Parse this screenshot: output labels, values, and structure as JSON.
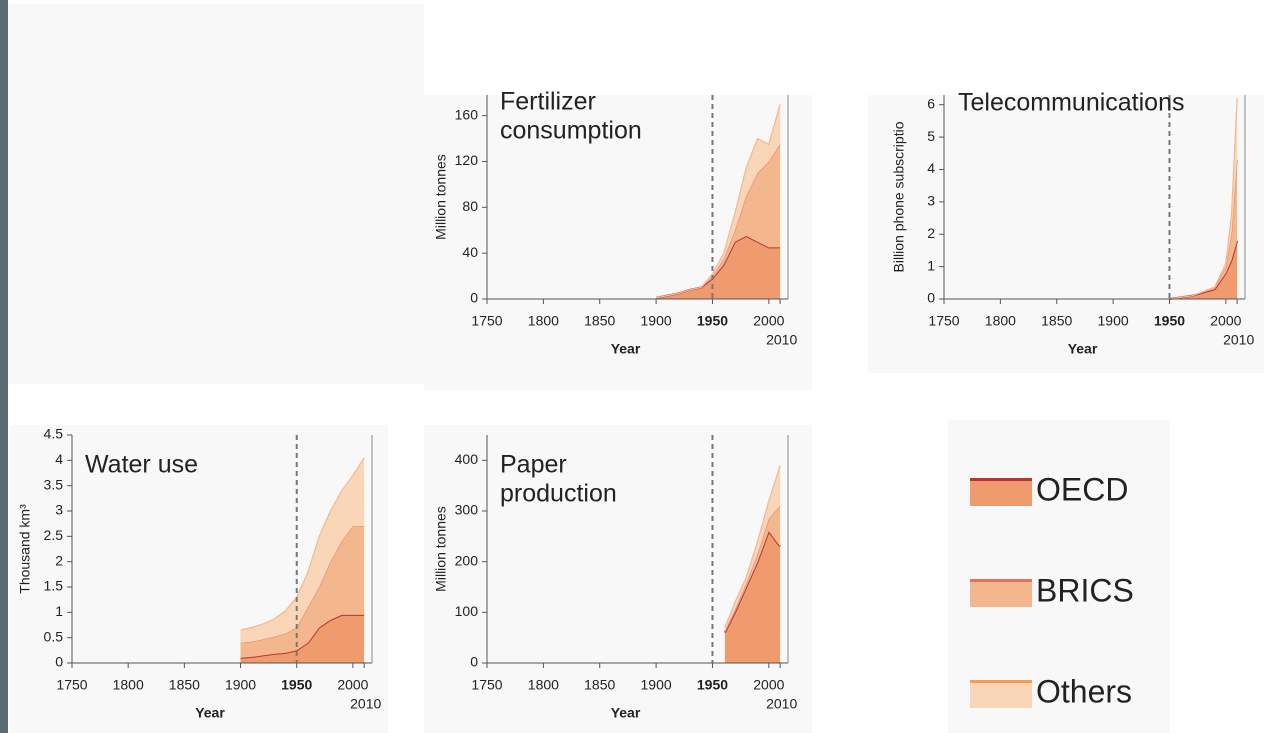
{
  "chart_data": [
    {
      "type": "stacked-area",
      "title": [
        "Fertilizer",
        "consumption"
      ],
      "y_label": "Million tonnes",
      "x_label": "Year",
      "x": [
        1900,
        1910,
        1920,
        1930,
        1940,
        1950,
        1960,
        1970,
        1980,
        1990,
        2000,
        2010
      ],
      "series": [
        {
          "name": "OECD",
          "color": "#ef9b6d",
          "line": "#b8343c",
          "values": [
            1,
            3,
            5,
            8,
            10,
            18,
            30,
            50,
            55,
            50,
            45,
            45
          ]
        },
        {
          "name": "BRICS",
          "color": "#f4b78d",
          "line": "#e8866a",
          "values": [
            0,
            0,
            0,
            0,
            0,
            2,
            5,
            10,
            35,
            60,
            75,
            90
          ]
        },
        {
          "name": "Others",
          "color": "#f9d6b8",
          "line": "#f3b98e",
          "values": [
            0,
            0,
            0,
            0,
            0,
            2,
            5,
            15,
            25,
            30,
            15,
            35
          ]
        }
      ],
      "xlim": [
        1750,
        2017
      ],
      "xticks": [
        1750,
        1800,
        1850,
        1900,
        1950,
        2000,
        2010
      ],
      "ylim": [
        0,
        178
      ],
      "yticks": [
        0,
        40,
        80,
        120,
        160
      ],
      "vline": 1950
    },
    {
      "type": "stacked-area",
      "title": [
        "Telecommunications"
      ],
      "y_label": "Billion phone subscriptio",
      "x_label": "Year",
      "x": [
        1950,
        1960,
        1970,
        1980,
        1990,
        2000,
        2005,
        2010
      ],
      "series": [
        {
          "name": "OECD",
          "color": "#ef9b6d",
          "line": "#b8343c",
          "values": [
            0,
            0.05,
            0.1,
            0.2,
            0.3,
            0.8,
            1.2,
            1.8
          ]
        },
        {
          "name": "BRICS",
          "color": "#f4b78d",
          "line": "#e8866a",
          "values": [
            0,
            0,
            0,
            0.02,
            0.05,
            0.2,
            0.8,
            2.5
          ]
        },
        {
          "name": "Others",
          "color": "#f9d6b8",
          "line": "#f3b98e",
          "values": [
            0,
            0,
            0,
            0.01,
            0.02,
            0.1,
            0.6,
            1.9
          ]
        }
      ],
      "xlim": [
        1750,
        2017
      ],
      "xticks": [
        1750,
        1800,
        1850,
        1900,
        1950,
        2000,
        2010
      ],
      "ylim": [
        0,
        6.3
      ],
      "yticks": [
        0,
        1,
        2,
        3,
        4,
        5,
        6
      ],
      "vline": 1950
    },
    {
      "type": "stacked-area",
      "title": [
        "Water use"
      ],
      "y_label": "Thousand km³",
      "x_label": "Year",
      "x": [
        1900,
        1910,
        1920,
        1930,
        1940,
        1950,
        1960,
        1970,
        1980,
        1990,
        2000,
        2010
      ],
      "series": [
        {
          "name": "OECD",
          "color": "#ef9b6d",
          "line": "#b8343c",
          "values": [
            0.1,
            0.12,
            0.15,
            0.18,
            0.2,
            0.25,
            0.4,
            0.7,
            0.85,
            0.95,
            0.95,
            0.95
          ]
        },
        {
          "name": "BRICS",
          "color": "#f4b78d",
          "line": "#e8866a",
          "values": [
            0.3,
            0.3,
            0.32,
            0.34,
            0.38,
            0.45,
            0.7,
            0.8,
            1.15,
            1.45,
            1.75,
            1.75
          ]
        },
        {
          "name": "Others",
          "color": "#f9d6b8",
          "line": "#f3b98e",
          "values": [
            0.25,
            0.28,
            0.3,
            0.35,
            0.45,
            0.6,
            0.7,
            1.0,
            1.0,
            1.0,
            1.0,
            1.35
          ]
        }
      ],
      "xlim": [
        1750,
        2017
      ],
      "xticks": [
        1750,
        1800,
        1850,
        1900,
        1950,
        2000,
        2010
      ],
      "ylim": [
        0,
        4.5
      ],
      "yticks": [
        0,
        0.5,
        1,
        1.5,
        2,
        2.5,
        3,
        3.5,
        4,
        4.5
      ],
      "vline": 1950
    },
    {
      "type": "stacked-area",
      "title": [
        "Paper",
        "production"
      ],
      "y_label": "Million tonnes",
      "x_label": "Year",
      "x": [
        1961,
        1970,
        1980,
        1990,
        2000,
        2010
      ],
      "series": [
        {
          "name": "OECD",
          "color": "#ef9b6d",
          "line": "#b8343c",
          "values": [
            60,
            100,
            150,
            200,
            260,
            230
          ]
        },
        {
          "name": "BRICS",
          "color": "#f4b78d",
          "line": "#e8866a",
          "values": [
            3,
            5,
            8,
            15,
            25,
            80
          ]
        },
        {
          "name": "Others",
          "color": "#f9d6b8",
          "line": "#f3b98e",
          "values": [
            7,
            15,
            12,
            25,
            35,
            80
          ]
        }
      ],
      "xlim": [
        1750,
        2017
      ],
      "xticks": [
        1750,
        1800,
        1850,
        1900,
        1950,
        2000,
        2010
      ],
      "ylim": [
        0,
        450
      ],
      "yticks": [
        0,
        100,
        200,
        300,
        400
      ],
      "vline": 1950
    }
  ],
  "legend": [
    {
      "name": "OECD",
      "color": "#ef9b6d",
      "line": "#b8343c"
    },
    {
      "name": "BRICS",
      "color": "#f4b78d",
      "line": "#e8705a"
    },
    {
      "name": "Others",
      "color": "#f9d6b8",
      "line": "#f0a050"
    }
  ]
}
